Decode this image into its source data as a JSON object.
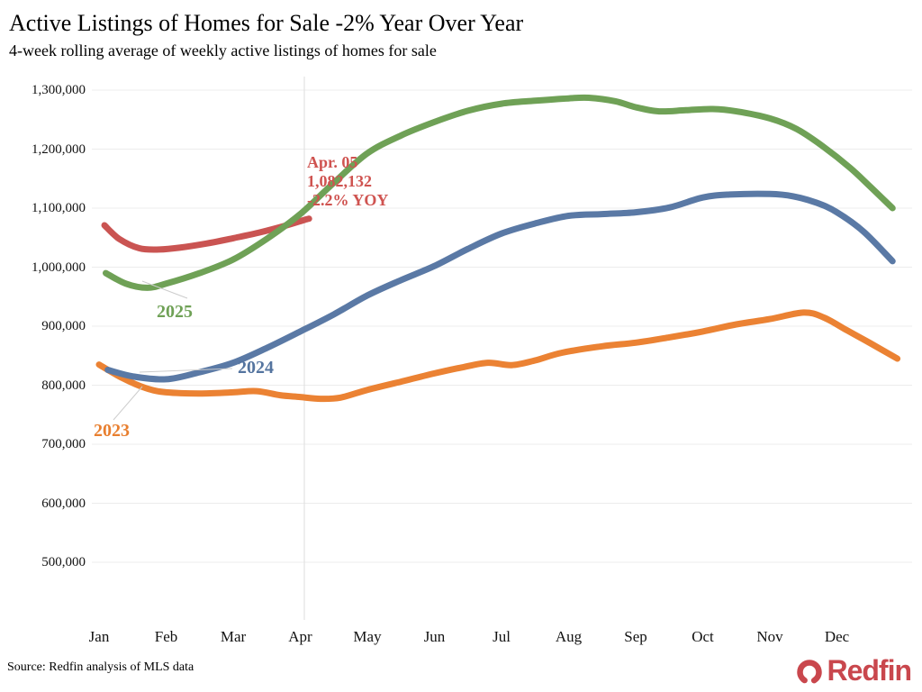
{
  "header": {
    "title": "Active Listings of Homes for Sale -2% Year Over Year",
    "subtitle": "4-week rolling average of weekly active listings of homes for sale"
  },
  "annotation": {
    "date": "Apr. 05",
    "value": "1,082,132",
    "yoy": "-2.2% YOY",
    "color": "#cf5350"
  },
  "footer": {
    "source": "Source: Redfin analysis of MLS data",
    "logo_text": "Redfin",
    "logo_color": "#c9474d"
  },
  "chart_data": {
    "type": "line",
    "title": "Active Listings of Homes for Sale -2% Year Over Year",
    "subtitle": "4-week rolling average of weekly active listings of homes for sale",
    "xlabel": "",
    "ylabel": "",
    "x_ticks": [
      "Jan",
      "Feb",
      "Mar",
      "Apr",
      "May",
      "Jun",
      "Jul",
      "Aug",
      "Sep",
      "Oct",
      "Nov",
      "Dec"
    ],
    "y_ticks": [
      1300000,
      1200000,
      1100000,
      1000000,
      900000,
      800000,
      700000,
      600000,
      500000
    ],
    "ylim": [
      500000,
      1300000
    ],
    "grid": "horizontal",
    "vertical_reference_line_month": 3.06,
    "legend_position": "inline-labels",
    "labels": [
      {
        "text": "2023",
        "color": "#e87f2f"
      },
      {
        "text": "2024",
        "color": "#54749f"
      },
      {
        "text": "2025",
        "color": "#6fa156"
      }
    ],
    "series": [
      {
        "id": "2023",
        "label": "2023",
        "color": "#eb8233",
        "points": [
          [
            0,
            835000
          ],
          [
            0.35,
            812000
          ],
          [
            0.7,
            795000
          ],
          [
            1,
            788000
          ],
          [
            1.5,
            786000
          ],
          [
            2,
            788000
          ],
          [
            2.35,
            790000
          ],
          [
            2.7,
            783000
          ],
          [
            3,
            780000
          ],
          [
            3.3,
            777000
          ],
          [
            3.6,
            779000
          ],
          [
            4,
            792000
          ],
          [
            4.5,
            806000
          ],
          [
            5,
            820000
          ],
          [
            5.4,
            830000
          ],
          [
            5.8,
            838000
          ],
          [
            6.15,
            834000
          ],
          [
            6.5,
            842000
          ],
          [
            6.9,
            855000
          ],
          [
            7.5,
            866000
          ],
          [
            8,
            872000
          ],
          [
            8.5,
            881000
          ],
          [
            9,
            891000
          ],
          [
            9.5,
            903000
          ],
          [
            10,
            912000
          ],
          [
            10.5,
            923000
          ],
          [
            10.8,
            915000
          ],
          [
            11.15,
            893000
          ],
          [
            11.5,
            871000
          ],
          [
            11.9,
            845000
          ]
        ]
      },
      {
        "id": "2024",
        "label": "2024",
        "color": "#5a79a5",
        "points": [
          [
            0.13,
            826000
          ],
          [
            0.5,
            815000
          ],
          [
            1,
            810000
          ],
          [
            1.5,
            822000
          ],
          [
            2,
            838000
          ],
          [
            2.5,
            863000
          ],
          [
            3,
            891000
          ],
          [
            3.5,
            920000
          ],
          [
            4,
            952000
          ],
          [
            4.5,
            978000
          ],
          [
            5,
            1002000
          ],
          [
            5.5,
            1031000
          ],
          [
            6,
            1057000
          ],
          [
            6.5,
            1074000
          ],
          [
            7,
            1087000
          ],
          [
            7.5,
            1090000
          ],
          [
            8,
            1093000
          ],
          [
            8.5,
            1101000
          ],
          [
            9,
            1118000
          ],
          [
            9.4,
            1123000
          ],
          [
            10,
            1124000
          ],
          [
            10.35,
            1120000
          ],
          [
            10.7,
            1109000
          ],
          [
            11,
            1093000
          ],
          [
            11.4,
            1060000
          ],
          [
            11.83,
            1010000
          ]
        ]
      },
      {
        "id": "red-current",
        "label": "",
        "color": "#ca5452",
        "points": [
          [
            0.08,
            1071000
          ],
          [
            0.3,
            1048000
          ],
          [
            0.6,
            1032000
          ],
          [
            0.9,
            1030000
          ],
          [
            1.2,
            1033000
          ],
          [
            1.6,
            1040000
          ],
          [
            2,
            1049000
          ],
          [
            2.4,
            1059000
          ],
          [
            2.8,
            1071000
          ],
          [
            3.06,
            1080000
          ],
          [
            3.13,
            1082132
          ]
        ]
      },
      {
        "id": "2025",
        "label": "2025",
        "color": "#6fa156",
        "points": [
          [
            0.1,
            990000
          ],
          [
            0.4,
            972000
          ],
          [
            0.72,
            965000
          ],
          [
            1,
            972000
          ],
          [
            1.5,
            990000
          ],
          [
            2,
            1013000
          ],
          [
            2.5,
            1048000
          ],
          [
            3,
            1090000
          ],
          [
            3.5,
            1143000
          ],
          [
            4,
            1193000
          ],
          [
            4.5,
            1223000
          ],
          [
            5,
            1246000
          ],
          [
            5.5,
            1265000
          ],
          [
            6,
            1277000
          ],
          [
            6.5,
            1282000
          ],
          [
            7,
            1286000
          ],
          [
            7.3,
            1287000
          ],
          [
            7.7,
            1281000
          ],
          [
            8,
            1271000
          ],
          [
            8.35,
            1264000
          ],
          [
            8.75,
            1266000
          ],
          [
            9.15,
            1268000
          ],
          [
            9.5,
            1264000
          ],
          [
            10,
            1252000
          ],
          [
            10.4,
            1234000
          ],
          [
            10.8,
            1204000
          ],
          [
            11.2,
            1168000
          ],
          [
            11.5,
            1136000
          ],
          [
            11.83,
            1100000
          ]
        ]
      }
    ]
  }
}
